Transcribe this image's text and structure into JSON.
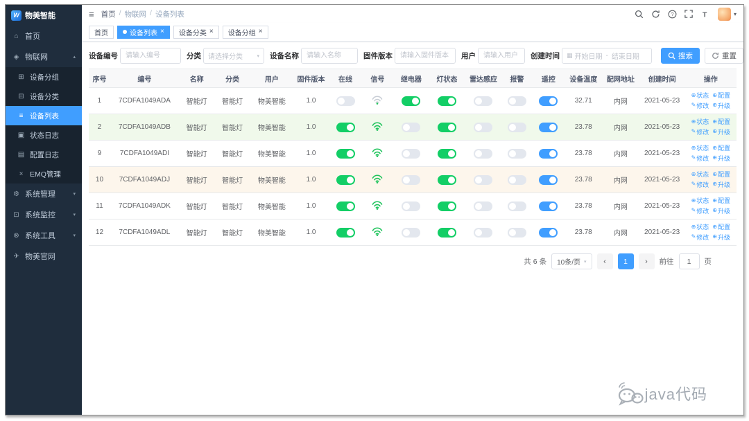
{
  "app": {
    "logo_mark": "W",
    "logo_text": "物美智能"
  },
  "colors": {
    "accent": "#409eff",
    "toggle_on_green": "#13ce66",
    "toggle_on_blue": "#409eff",
    "sidebar_bg": "#1f2d3d",
    "row_highlight_green": "#f0f9eb",
    "row_highlight_orange": "#fdf6ec",
    "link_blue": "#409eff"
  },
  "sidebar": {
    "items": [
      {
        "key": "home",
        "icon": "home",
        "label": "首页"
      },
      {
        "key": "iot",
        "icon": "iot",
        "label": "物联网",
        "expanded": true,
        "children": [
          {
            "key": "device-group",
            "icon": "group",
            "label": "设备分组"
          },
          {
            "key": "device-category",
            "icon": "category",
            "label": "设备分类"
          },
          {
            "key": "device-list",
            "icon": "list",
            "label": "设备列表",
            "active": true
          },
          {
            "key": "status-log",
            "icon": "status-log",
            "label": "状态日志"
          },
          {
            "key": "config-log",
            "icon": "config-log",
            "label": "配置日志"
          },
          {
            "key": "emq",
            "icon": "emq",
            "label": "EMQ管理"
          }
        ]
      },
      {
        "key": "system",
        "icon": "gear",
        "label": "系统管理",
        "collapsed": true
      },
      {
        "key": "monitor",
        "icon": "monitor",
        "label": "系统监控",
        "collapsed": true
      },
      {
        "key": "tools",
        "icon": "tool",
        "label": "系统工具",
        "collapsed": true
      },
      {
        "key": "site",
        "icon": "plane",
        "label": "物美官网"
      }
    ]
  },
  "header": {
    "breadcrumb": [
      "首页",
      "物联网",
      "设备列表"
    ],
    "icons": [
      "search",
      "refresh",
      "help",
      "fullscreen",
      "font-size"
    ]
  },
  "tabs": [
    {
      "label": "首页",
      "active": false,
      "closable": false
    },
    {
      "label": "设备列表",
      "active": true,
      "closable": true
    },
    {
      "label": "设备分类",
      "active": false,
      "closable": true
    },
    {
      "label": "设备分组",
      "active": false,
      "closable": true
    }
  ],
  "filters": {
    "fields": [
      {
        "key": "device_no",
        "label": "设备编号",
        "type": "input",
        "placeholder": "请输入编号"
      },
      {
        "key": "category",
        "label": "分类",
        "type": "select",
        "placeholder": "请选择分类"
      },
      {
        "key": "device_name",
        "label": "设备名称",
        "type": "input",
        "placeholder": "请输入名称"
      },
      {
        "key": "firmware",
        "label": "固件版本",
        "type": "input",
        "placeholder": "请输入固件版本"
      },
      {
        "key": "user",
        "label": "用户",
        "type": "input",
        "placeholder": "请输入用户"
      },
      {
        "key": "created",
        "label": "创建时间",
        "type": "daterange",
        "start_placeholder": "开始日期",
        "separator": "-",
        "end_placeholder": "结束日期"
      }
    ],
    "search_label": "搜索",
    "reset_label": "重置"
  },
  "table": {
    "columns": [
      "序号",
      "编号",
      "名称",
      "分类",
      "用户",
      "固件版本",
      "在线",
      "信号",
      "继电器",
      "灯状态",
      "雷达感应",
      "报警",
      "遥控",
      "设备温度",
      "配网地址",
      "创建时间",
      "操作"
    ],
    "ops": [
      {
        "key": "status",
        "icon": "⊕",
        "label": "状态"
      },
      {
        "key": "config",
        "icon": "⊕",
        "label": "配置"
      },
      {
        "key": "edit",
        "icon": "✎",
        "label": "修改"
      },
      {
        "key": "upgrade",
        "icon": "⊕",
        "label": "升级"
      }
    ],
    "rows": [
      {
        "seq": "1",
        "no": "7CDFA1049ADA",
        "name": "智能灯",
        "category": "智能灯",
        "user": "物美智能",
        "firmware": "1.0",
        "online": false,
        "signal": "weak",
        "relay": true,
        "light": true,
        "radar": false,
        "alarm": false,
        "remote": true,
        "temp": "32.71",
        "net": "内网",
        "created": "2021-05-23",
        "highlight": ""
      },
      {
        "seq": "2",
        "no": "7CDFA1049ADB",
        "name": "智能灯",
        "category": "智能灯",
        "user": "物美智能",
        "firmware": "1.0",
        "online": true,
        "signal": "strong",
        "relay": false,
        "light": true,
        "radar": false,
        "alarm": false,
        "remote": true,
        "temp": "23.78",
        "net": "内网",
        "created": "2021-05-23",
        "highlight": "green"
      },
      {
        "seq": "9",
        "no": "7CDFA1049ADI",
        "name": "智能灯",
        "category": "智能灯",
        "user": "物美智能",
        "firmware": "1.0",
        "online": true,
        "signal": "strong",
        "relay": false,
        "light": true,
        "radar": false,
        "alarm": false,
        "remote": true,
        "temp": "23.78",
        "net": "内网",
        "created": "2021-05-23",
        "highlight": ""
      },
      {
        "seq": "10",
        "no": "7CDFA1049ADJ",
        "name": "智能灯",
        "category": "智能灯",
        "user": "物美智能",
        "firmware": "1.0",
        "online": true,
        "signal": "strong",
        "relay": false,
        "light": true,
        "radar": false,
        "alarm": false,
        "remote": true,
        "temp": "23.78",
        "net": "内网",
        "created": "2021-05-23",
        "highlight": "orange"
      },
      {
        "seq": "11",
        "no": "7CDFA1049ADK",
        "name": "智能灯",
        "category": "智能灯",
        "user": "物美智能",
        "firmware": "1.0",
        "online": true,
        "signal": "strong",
        "relay": false,
        "light": true,
        "radar": false,
        "alarm": false,
        "remote": true,
        "temp": "23.78",
        "net": "内网",
        "created": "2021-05-23",
        "highlight": ""
      },
      {
        "seq": "12",
        "no": "7CDFA1049ADL",
        "name": "智能灯",
        "category": "智能灯",
        "user": "物美智能",
        "firmware": "1.0",
        "online": true,
        "signal": "strong",
        "relay": false,
        "light": true,
        "radar": false,
        "alarm": false,
        "remote": true,
        "temp": "23.78",
        "net": "内网",
        "created": "2021-05-23",
        "highlight": ""
      }
    ]
  },
  "pagination": {
    "total": "共 6 条",
    "page_size": "10条/页",
    "prev_icon": "‹",
    "next_icon": "›",
    "current_page": "1",
    "goto_label": "前往",
    "goto_value": "1",
    "unit": "页"
  },
  "watermark": {
    "text": "java代码"
  }
}
